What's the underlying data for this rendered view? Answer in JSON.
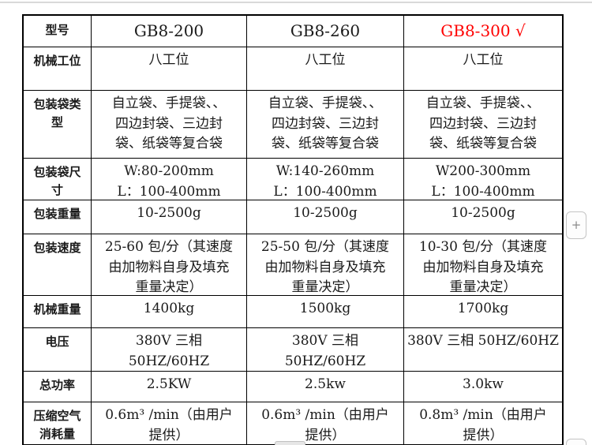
{
  "page": {
    "top_line_color": "#d9d9d9",
    "background_color": "#ffffff"
  },
  "table": {
    "border_color": "#000000",
    "highlight_color": "#ff0000",
    "header": {
      "label": "型号",
      "models": [
        "GB8-200",
        "GB8-260",
        "GB8-300 √"
      ]
    },
    "rows": [
      {
        "label_lines": [
          "机械工位"
        ],
        "cells": [
          [
            "八工位"
          ],
          [
            "八工位"
          ],
          [
            "八工位"
          ]
        ]
      },
      {
        "label_lines": [
          "包装袋类",
          "型"
        ],
        "cells": [
          [
            "自立袋、手提袋、、",
            "四边封袋、三边封",
            "袋、纸袋等复合袋"
          ],
          [
            "自立袋、手提袋、、",
            "四边封袋、三边封",
            "袋、纸袋等复合袋"
          ],
          [
            "自立袋、手提袋、、",
            "四边封袋、三边封",
            "袋、纸袋等复合袋"
          ]
        ]
      },
      {
        "label_lines": [
          "包装袋尺",
          "寸"
        ],
        "cells": [
          [
            "W:80-200mm",
            "L：100-400mm"
          ],
          [
            "W:140-260mm",
            "L：100-400mm"
          ],
          [
            "W200-300mm",
            "L：100-400mm"
          ]
        ]
      },
      {
        "label_lines": [
          "包装重量"
        ],
        "cells": [
          [
            "10-2500g"
          ],
          [
            "10-2500g"
          ],
          [
            "10-2500g"
          ]
        ]
      },
      {
        "label_lines": [
          "包装速度"
        ],
        "cells": [
          [
            "25-60 包/分（其速度",
            "由加物料自身及填充",
            "重量决定）"
          ],
          [
            "25-50 包/分（其速度",
            "由加物料自身及填充",
            "重量决定）"
          ],
          [
            "10-30 包/分（其速度",
            "由加物料自身及填充",
            "重量决定）"
          ]
        ]
      },
      {
        "label_lines": [
          "机械重量"
        ],
        "cells": [
          [
            "1400kg"
          ],
          [
            "1500kg"
          ],
          [
            "1700kg"
          ]
        ]
      },
      {
        "label_lines": [
          "电压"
        ],
        "cells": [
          [
            "380V 三相",
            "50HZ/60HZ"
          ],
          [
            "380V 三相",
            "50HZ/60HZ"
          ],
          [
            "380V 三相 50HZ/60HZ"
          ]
        ]
      },
      {
        "label_lines": [
          "总功率"
        ],
        "cells": [
          [
            "2.5KW"
          ],
          [
            "2.5kw"
          ],
          [
            "3.0kw"
          ]
        ]
      },
      {
        "label_lines": [
          "压缩空气",
          "消耗量"
        ],
        "cells": [
          [
            "0.6m³ /min（由用户",
            "提供）"
          ],
          [
            "0.6m³ /min（由用户",
            "提供）"
          ],
          [
            "0.8m³ /min（由用户",
            "提供）"
          ]
        ]
      }
    ]
  },
  "controls": {
    "zoom_in_label": "+"
  }
}
